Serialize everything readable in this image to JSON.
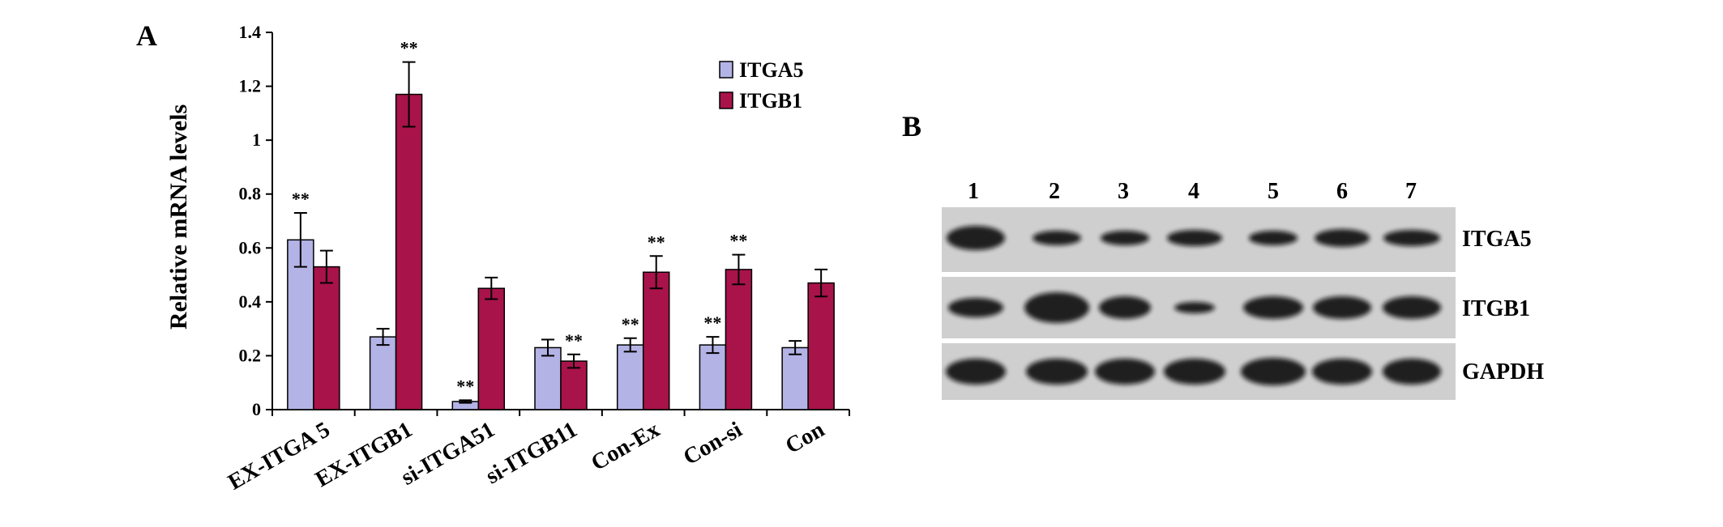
{
  "panels": {
    "a_label": "A",
    "b_label": "B"
  },
  "chart_data": {
    "type": "bar",
    "title": "",
    "xlabel": "",
    "ylabel": "Relative mRNA levels",
    "ylim": [
      0,
      1.4
    ],
    "yticks": [
      "0",
      "0.2",
      "0.4",
      "0.6",
      "0.8",
      "1",
      "1.2",
      "1.4"
    ],
    "ytick_values": [
      0,
      0.2,
      0.4,
      0.6,
      0.8,
      1.0,
      1.2,
      1.4
    ],
    "legend_position": "top-right",
    "categories": [
      "EX-ITGA 5",
      "EX-ITGB1",
      "si-ITGA51",
      "si-ITGB11",
      "Con-Ex",
      "Con-si",
      "Con"
    ],
    "series": [
      {
        "name": "ITGA5",
        "color": "#b3b3e6",
        "values": [
          0.63,
          0.27,
          0.03,
          0.23,
          0.24,
          0.24,
          0.23
        ],
        "errors": [
          0.1,
          0.03,
          0.005,
          0.03,
          0.025,
          0.03,
          0.025
        ],
        "significance": [
          "**",
          "",
          "**",
          "",
          "**",
          "**",
          ""
        ]
      },
      {
        "name": "ITGB1",
        "color": "#a8134a",
        "values": [
          0.53,
          1.17,
          0.45,
          0.18,
          0.51,
          0.52,
          0.47
        ],
        "errors": [
          0.06,
          0.12,
          0.04,
          0.025,
          0.06,
          0.055,
          0.05
        ],
        "significance": [
          "",
          "**",
          "",
          "**",
          "**",
          "**",
          ""
        ]
      }
    ]
  },
  "blot": {
    "lanes": [
      "1",
      "2",
      "3",
      "4",
      "5",
      "6",
      "7"
    ],
    "proteins": [
      "ITGA5",
      "ITGB1",
      "GAPDH"
    ]
  }
}
